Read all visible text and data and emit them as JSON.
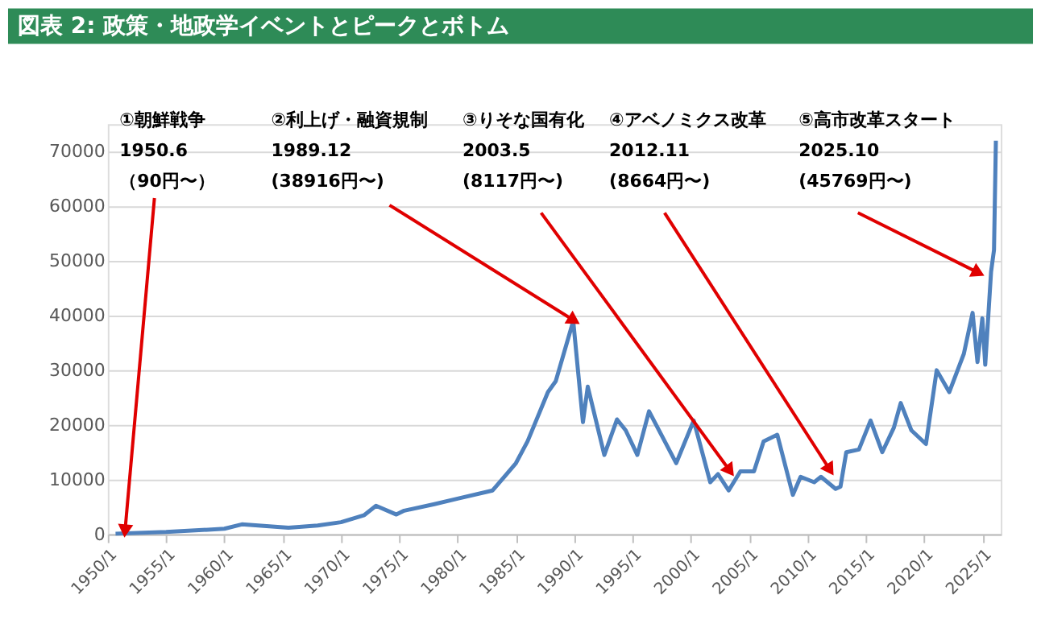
{
  "chart_data": {
    "type": "line",
    "title": "図表 2: 政策・地政学イベントとピークとボトム",
    "x": [
      "1950-09",
      "1955-01",
      "1960-01",
      "1961-07",
      "1965-07",
      "1968-01",
      "1970-01",
      "1972-01",
      "1973-01",
      "1974-10",
      "1975-06",
      "1978-01",
      "1980-01",
      "1983-01",
      "1984-01",
      "1985-01",
      "1986-01",
      "1987-10",
      "1988-06",
      "1989-12",
      "1990-10",
      "1991-03",
      "1992-08",
      "1993-09",
      "1994-06",
      "1995-06",
      "1996-06",
      "1998-10",
      "2000-04",
      "2001-09",
      "2002-05",
      "2003-04",
      "2004-04",
      "2005-06",
      "2006-04",
      "2007-06",
      "2008-10",
      "2009-06",
      "2010-08",
      "2011-03",
      "2012-06",
      "2012-11",
      "2013-05",
      "2014-06",
      "2015-06",
      "2016-06",
      "2017-06",
      "2018-01",
      "2018-12",
      "2020-03",
      "2021-02",
      "2022-03",
      "2023-06",
      "2024-03",
      "2024-08",
      "2025-01",
      "2025-04",
      "2025-10",
      "2026-01",
      "2026-03"
    ],
    "series": [
      {
        "color": "#4f81bd",
        "values": [
          100,
          400,
          1000,
          1800,
          1200,
          1600,
          2200,
          3500,
          5200,
          3600,
          4300,
          5500,
          6500,
          8000,
          10500,
          13000,
          17000,
          26000,
          28000,
          39000,
          20500,
          27000,
          14500,
          21000,
          19000,
          14500,
          22500,
          13000,
          20800,
          9500,
          11000,
          8000,
          11500,
          11500,
          17000,
          18200,
          7200,
          10500,
          9500,
          10500,
          8300,
          8700,
          15000,
          15500,
          20800,
          15000,
          19500,
          24000,
          19000,
          16500,
          30000,
          26000,
          33000,
          40500,
          31500,
          39500,
          31000,
          48000,
          52000,
          72000
        ]
      }
    ],
    "ylim": [
      0,
      75000
    ],
    "yticks": [
      0,
      10000,
      20000,
      30000,
      40000,
      50000,
      60000,
      70000
    ],
    "xlim": [
      "1950-01",
      "2026-08"
    ],
    "xticks": [
      {
        "value": "1950-01",
        "label": "1950/1"
      },
      {
        "value": "1955-01",
        "label": "1955/1"
      },
      {
        "value": "1960-01",
        "label": "1960/1"
      },
      {
        "value": "1965-01",
        "label": "1965/1"
      },
      {
        "value": "1970-01",
        "label": "1970/1"
      },
      {
        "value": "1975-01",
        "label": "1975/1"
      },
      {
        "value": "1980-01",
        "label": "1980/1"
      },
      {
        "value": "1985-01",
        "label": "1985/1"
      },
      {
        "value": "1990-01",
        "label": "1990/1"
      },
      {
        "value": "1995-01",
        "label": "1995/1"
      },
      {
        "value": "2000-01",
        "label": "2000/1"
      },
      {
        "value": "2005-01",
        "label": "2005/1"
      },
      {
        "value": "2010-01",
        "label": "2010/1"
      },
      {
        "value": "2015-01",
        "label": "2015/1"
      },
      {
        "value": "2020-01",
        "label": "2020/1"
      },
      {
        "value": "2025-01",
        "label": "2025/1"
      }
    ],
    "grid": "y",
    "marker": "none",
    "line_style": "solid",
    "annotations": [
      {
        "text": "①朝鮮戦争\n1950.6\n（90円〜）",
        "x": "1951-07",
        "y": 1000
      },
      {
        "text": "②利上げ・融資規制\n1989.12\n(38916円〜)",
        "x": "1989-11",
        "y": 39300
      },
      {
        "text": "③りそな国有化\n2003.5\n(8117円〜)",
        "x": "2003-04",
        "y": 11900
      },
      {
        "text": "④アベノミクス改革\n2012.11\n(8664円〜)",
        "x": "2011-11",
        "y": 12100
      },
      {
        "text": "⑤高市改革スタート\n2025.10\n(45769円〜)",
        "x": "2024-07",
        "y": 48000
      }
    ]
  }
}
